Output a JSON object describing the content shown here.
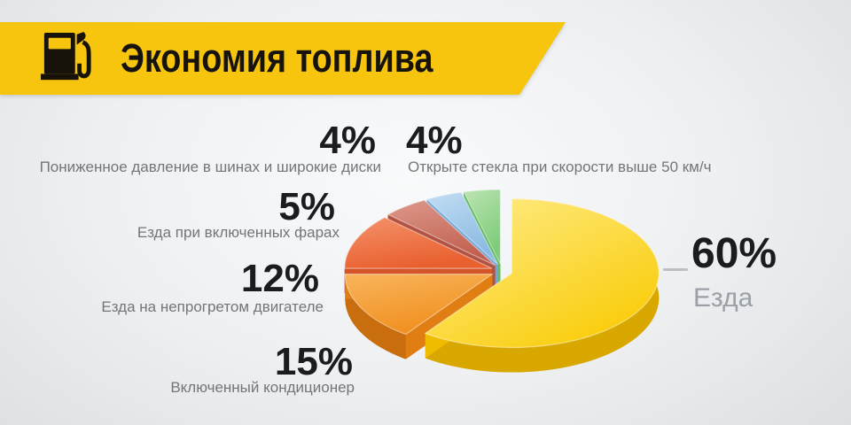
{
  "header": {
    "title": "Экономия топлива",
    "icon": "fuel-pump-icon",
    "banner_color": "#F7C40E"
  },
  "chart_data": {
    "type": "pie",
    "style": "3d-exploded",
    "title": "Экономия топлива",
    "unit": "%",
    "start_angle_deg": 0,
    "direction": "clockwise",
    "legend_position": "callout-labels",
    "slices": [
      {
        "label": "Езда",
        "value": 60,
        "display": "60%",
        "colors": {
          "light": "#FFEE8F",
          "base": "#F9CB05",
          "side": "#EFBC00",
          "dark": "#D9A800"
        }
      },
      {
        "label": "Включенный кондиционер",
        "value": 15,
        "display": "15%",
        "colors": {
          "light": "#F9B45C",
          "base": "#F0901F",
          "side": "#E07E14",
          "dark": "#C86E0E"
        }
      },
      {
        "label": "Езда на непрогретом двигателе",
        "value": 12,
        "display": "12%",
        "colors": {
          "light": "#F4926B",
          "base": "#E9602F",
          "side": "#D5552B",
          "dark": "#BC4523"
        }
      },
      {
        "label": "Езда при включенных фарах",
        "value": 5,
        "display": "5%",
        "colors": {
          "light": "#DC998C",
          "base": "#C2604F",
          "side": "#B15243",
          "dark": "#9A4437"
        }
      },
      {
        "label": "Пониженное давление в шинах и широкие диски",
        "value": 4,
        "display": "4%",
        "colors": {
          "light": "#C2DDF2",
          "base": "#8ABAE3",
          "side": "#74A7D8",
          "dark": "#5F94C9"
        }
      },
      {
        "label": "Открыте стекла при скорости выше 50 км/ч",
        "value": 4,
        "display": "4%",
        "colors": {
          "light": "#BCE4B2",
          "base": "#7CCB78",
          "side": "#63BB64",
          "dark": "#4AA850"
        }
      }
    ]
  }
}
